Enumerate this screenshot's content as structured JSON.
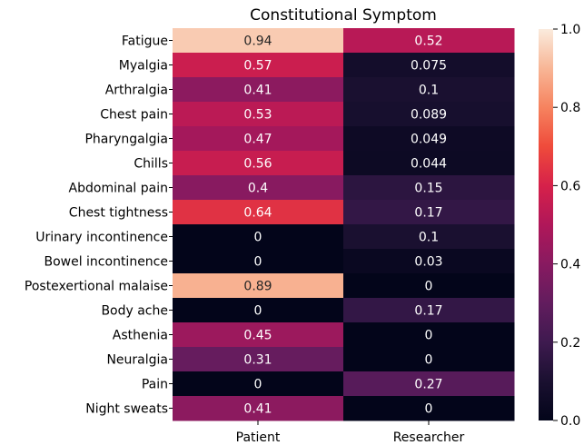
{
  "chart_data": {
    "type": "heatmap",
    "title": "Constitutional Symptom",
    "xlabel": "",
    "ylabel": "",
    "columns": [
      "Patient",
      "Researcher"
    ],
    "rows": [
      "Fatigue",
      "Myalgia",
      "Arthralgia",
      "Chest pain",
      "Pharyngalgia",
      "Chills",
      "Abdominal pain",
      "Chest tightness",
      "Urinary incontinence",
      "Bowel incontinence",
      "Postexertional malaise",
      "Body ache",
      "Asthenia",
      "Neuralgia",
      "Pain",
      "Night sweats"
    ],
    "values": [
      [
        0.94,
        0.52
      ],
      [
        0.57,
        0.075
      ],
      [
        0.41,
        0.1
      ],
      [
        0.53,
        0.089
      ],
      [
        0.47,
        0.049
      ],
      [
        0.56,
        0.044
      ],
      [
        0.4,
        0.15
      ],
      [
        0.64,
        0.17
      ],
      [
        0,
        0.1
      ],
      [
        0,
        0.03
      ],
      [
        0.89,
        0
      ],
      [
        0,
        0.17
      ],
      [
        0.45,
        0
      ],
      [
        0.31,
        0
      ],
      [
        0,
        0.27
      ],
      [
        0.41,
        0
      ]
    ],
    "colorbar": {
      "range": [
        0.0,
        1.0
      ],
      "ticks": [
        "0.0",
        "0.2",
        "0.4",
        "0.6",
        "0.8",
        "1.0"
      ],
      "colormap": "rocket"
    }
  }
}
